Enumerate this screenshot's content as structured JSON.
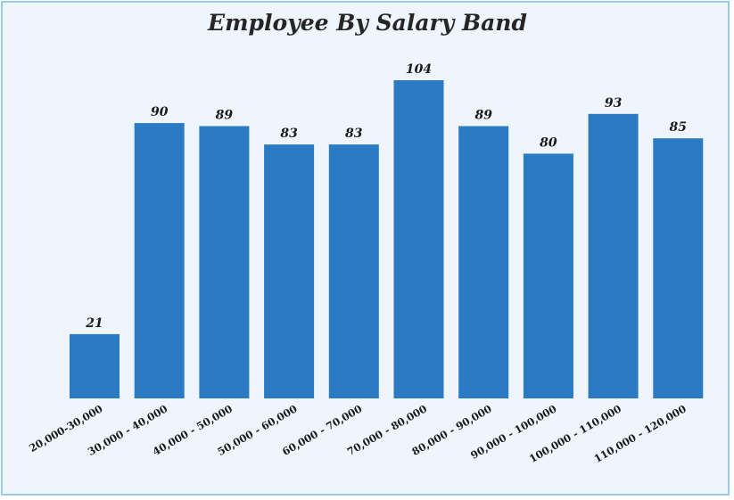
{
  "chart_data": {
    "type": "bar",
    "title": "Employee By Salary Band",
    "xlabel": "",
    "ylabel": "",
    "categories": [
      "20,000-30,000",
      "30,000 - 40,000",
      "40,000 - 50,000",
      "50,000 - 60,000",
      "60,000 - 70,000",
      "70,000 - 80,000",
      "80,000 - 90,000",
      "90,000 - 100,000",
      "100,000 - 110,000",
      "110,000 - 120,000"
    ],
    "values": [
      21,
      90,
      89,
      83,
      83,
      104,
      89,
      80,
      93,
      85
    ],
    "ylim": [
      0,
      104
    ],
    "grid": false,
    "bar_color": "#2b7bc4",
    "background_color": "#eef5fd",
    "border_color": "#9ccbe8"
  }
}
